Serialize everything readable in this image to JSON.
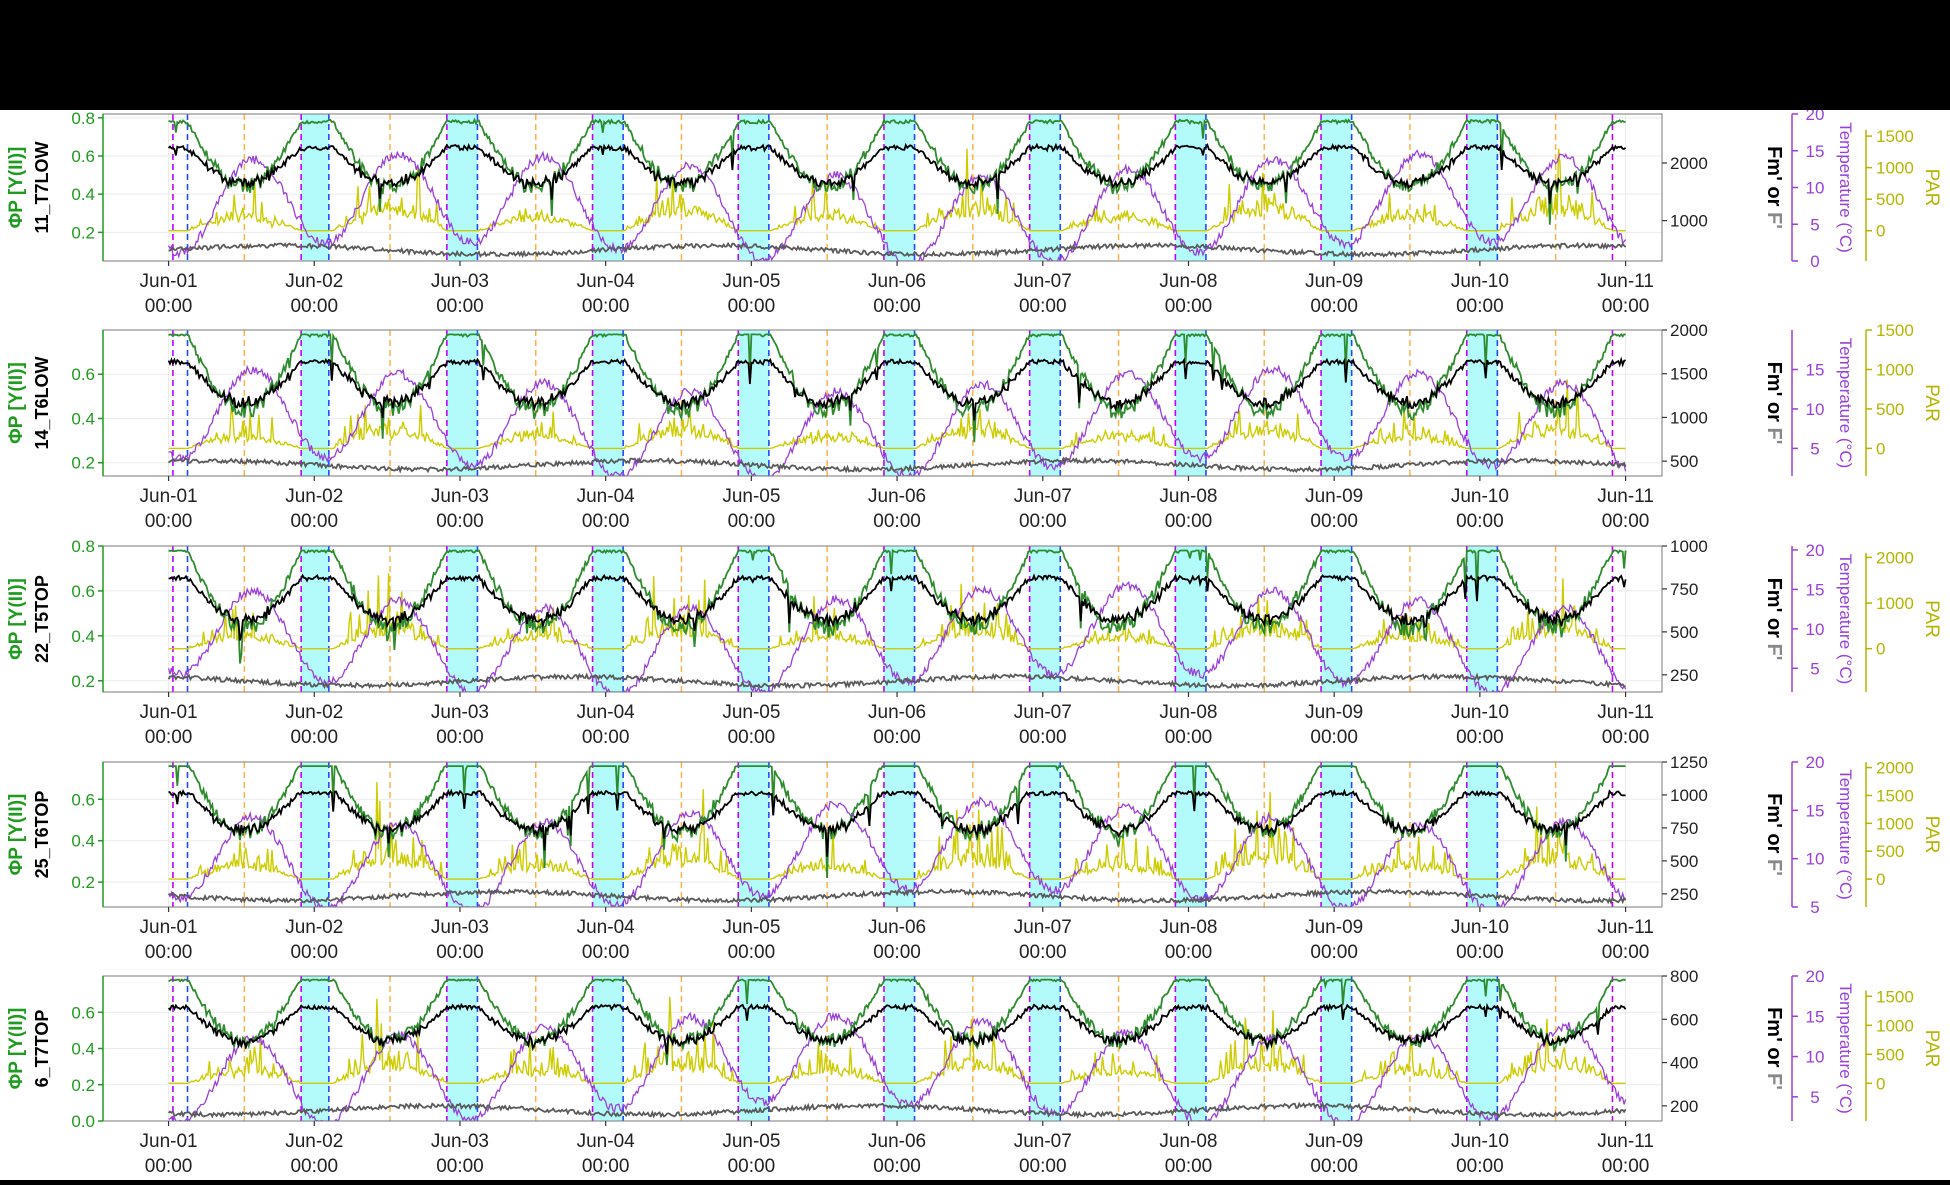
{
  "chart_data": [
    {
      "type": "line",
      "site_label": "11_T7LOW",
      "ylabel_left": "ΦP [Y(II)]",
      "ylabel_fm": "Fm' or F'",
      "ylabel_temp": "Temperature (°C)",
      "ylabel_par": "PAR",
      "yleft_ticks": [
        0.2,
        0.4,
        0.6,
        0.8
      ],
      "yleft_range": [
        0.05,
        0.82
      ],
      "yfm_ticks": [
        1000,
        2000
      ],
      "yfm_range": [
        300,
        2850
      ],
      "ytemp_ticks": [
        0,
        5,
        10,
        15,
        20
      ],
      "ytemp_range": [
        0,
        20
      ],
      "ypar_ticks": [
        0,
        500,
        1000,
        1500
      ],
      "ypar_range": [
        -480,
        1850
      ]
    },
    {
      "type": "line",
      "site_label": "14_T6LOW",
      "ylabel_left": "ΦP [Y(II)]",
      "ylabel_fm": "Fm' or F'",
      "ylabel_temp": "Temperature (°C)",
      "ylabel_par": "PAR",
      "yleft_ticks": [
        0.2,
        0.4,
        0.6
      ],
      "yleft_range": [
        0.14,
        0.8
      ],
      "yfm_ticks": [
        500,
        1000,
        1500,
        2000
      ],
      "yfm_range": [
        330,
        2000
      ],
      "ytemp_ticks": [
        5,
        10,
        15
      ],
      "ytemp_range": [
        1.5,
        20
      ],
      "ypar_ticks": [
        0,
        500,
        1000,
        1500
      ],
      "ypar_range": [
        -350,
        1500
      ]
    },
    {
      "type": "line",
      "site_label": "22_T5TOP",
      "ylabel_left": "ΦP [Y(II)]",
      "ylabel_fm": "Fm' or F'",
      "ylabel_temp": "Temperature (°C)",
      "ylabel_par": "PAR",
      "yleft_ticks": [
        0.2,
        0.4,
        0.6,
        0.8
      ],
      "yleft_range": [
        0.15,
        0.8
      ],
      "yfm_ticks": [
        250,
        500,
        750,
        1000
      ],
      "yfm_range": [
        150,
        1000
      ],
      "ytemp_ticks": [
        5,
        10,
        15,
        20
      ],
      "ytemp_range": [
        2,
        20.5
      ],
      "ypar_ticks": [
        0,
        1000,
        2000
      ],
      "ypar_range": [
        -950,
        2250
      ]
    },
    {
      "type": "line",
      "site_label": "25_T6TOP",
      "ylabel_left": "ΦP [Y(II)]",
      "ylabel_fm": "Fm' or F'",
      "ylabel_temp": "Temperature (°C)",
      "ylabel_par": "PAR",
      "yleft_ticks": [
        0.2,
        0.4,
        0.6
      ],
      "yleft_range": [
        0.08,
        0.78
      ],
      "yfm_ticks": [
        250,
        500,
        750,
        1000,
        1250
      ],
      "yfm_range": [
        150,
        1250
      ],
      "ytemp_ticks": [
        5,
        10,
        15,
        20
      ],
      "ytemp_range": [
        5,
        20
      ],
      "ypar_ticks": [
        0,
        500,
        1000,
        1500,
        2000
      ],
      "ypar_range": [
        -500,
        2100
      ]
    },
    {
      "type": "line",
      "site_label": "6_T7TOP",
      "ylabel_left": "ΦP [Y(II)]",
      "ylabel_fm": "Fm' or F'",
      "ylabel_temp": "Temperature (°C)",
      "ylabel_par": "PAR",
      "yleft_ticks": [
        0.0,
        0.2,
        0.4,
        0.6
      ],
      "yleft_range": [
        0,
        0.8
      ],
      "yfm_ticks": [
        200,
        400,
        600,
        800
      ],
      "yfm_range": [
        130,
        800
      ],
      "ytemp_ticks": [
        5,
        10,
        15,
        20
      ],
      "ytemp_range": [
        2,
        20
      ],
      "ypar_ticks": [
        0,
        500,
        1000,
        1500
      ],
      "ypar_range": [
        -650,
        1850
      ]
    }
  ],
  "x_axis": {
    "range_days": [
      -0.45,
      10.25
    ],
    "ticks": [
      {
        "day": 0,
        "line1": "Jun-01",
        "line2": "00:00"
      },
      {
        "day": 1,
        "line1": "Jun-02",
        "line2": "00:00"
      },
      {
        "day": 2,
        "line1": "Jun-03",
        "line2": "00:00"
      },
      {
        "day": 3,
        "line1": "Jun-04",
        "line2": "00:00"
      },
      {
        "day": 4,
        "line1": "Jun-05",
        "line2": "00:00"
      },
      {
        "day": 5,
        "line1": "Jun-06",
        "line2": "00:00"
      },
      {
        "day": 6,
        "line1": "Jun-07",
        "line2": "00:00"
      },
      {
        "day": 7,
        "line1": "Jun-08",
        "line2": "00:00"
      },
      {
        "day": 8,
        "line1": "Jun-09",
        "line2": "00:00"
      },
      {
        "day": 9,
        "line1": "Jun-10",
        "line2": "00:00"
      },
      {
        "day": 10,
        "line1": "Jun-11",
        "line2": "00:00"
      }
    ]
  },
  "night_bands_days": [
    [
      0.91,
      1.1
    ],
    [
      1.91,
      2.12
    ],
    [
      2.91,
      3.12
    ],
    [
      3.91,
      4.12
    ],
    [
      4.91,
      5.12
    ],
    [
      5.91,
      6.12
    ],
    [
      6.91,
      7.12
    ],
    [
      7.91,
      8.12
    ],
    [
      8.91,
      9.12
    ]
  ],
  "sunset_lines_days": [
    0.03,
    0.91,
    1.91,
    2.91,
    3.91,
    4.91,
    5.91,
    6.91,
    7.91,
    8.91,
    9.91
  ],
  "sunrise_lines_days": [
    0.13,
    1.1,
    2.12,
    3.12,
    4.12,
    5.12,
    6.12,
    7.12,
    8.12,
    9.12
  ],
  "noon_lines_days": [
    0.52,
    1.52,
    2.52,
    3.52,
    4.52,
    5.52,
    6.52,
    7.52,
    8.52,
    9.52
  ],
  "colors": {
    "yield": "#2e8b2e",
    "fm": "#000000",
    "f": "#5a5a5a",
    "temp": "#9a40d8",
    "par": "#cccc00",
    "night_band": "#b3fbfb",
    "sunset_line": "#c000ff",
    "sunrise_line": "#1d4cff",
    "noon_line": "#ffb347",
    "left_axis_label": "#1f9b1f",
    "fm_label": "#000000",
    "f_label": "#888888",
    "temp_axis": "#9a40d8",
    "par_axis": "#b5b500"
  }
}
